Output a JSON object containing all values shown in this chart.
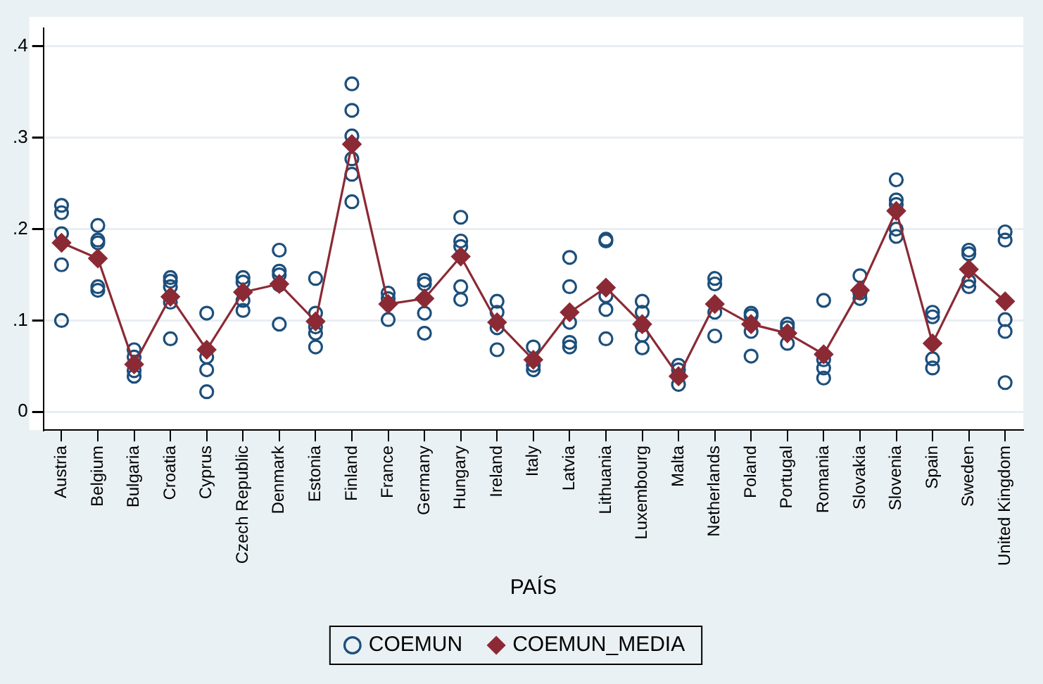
{
  "chart_data": {
    "type": "scatter",
    "xlabel": "PAÍS",
    "categories": [
      "Austria",
      "Belgium",
      "Bulgaria",
      "Croatia",
      "Cyprus",
      "Czech Republic",
      "Denmark",
      "Estonia",
      "Finland",
      "France",
      "Germany",
      "Hungary",
      "Ireland",
      "Italy",
      "Latvia",
      "Lithuania",
      "Luxembourg",
      "Malta",
      "Netherlands",
      "Poland",
      "Portugal",
      "Romania",
      "Slovakia",
      "Slovenia",
      "Spain",
      "Sweden",
      "United Kingdom"
    ],
    "ylim": [
      -0.02,
      0.42
    ],
    "yticks": [
      {
        "value": 0,
        "label": "0"
      },
      {
        "value": 0.1,
        "label": ".1"
      },
      {
        "value": 0.2,
        "label": ".2"
      },
      {
        "value": 0.3,
        "label": ".3"
      },
      {
        "value": 0.4,
        "label": ".4"
      }
    ],
    "grid": "y",
    "legend": "bottom",
    "series": [
      {
        "name": "COEMUN",
        "type": "scatter",
        "marker": "circle",
        "color": "#1c4f7c",
        "x": [
          "Austria",
          "Austria",
          "Austria",
          "Austria",
          "Austria",
          "Belgium",
          "Belgium",
          "Belgium",
          "Belgium",
          "Belgium",
          "Bulgaria",
          "Bulgaria",
          "Bulgaria",
          "Bulgaria",
          "Croatia",
          "Croatia",
          "Croatia",
          "Croatia",
          "Croatia",
          "Cyprus",
          "Cyprus",
          "Cyprus",
          "Cyprus",
          "Czech Republic",
          "Czech Republic",
          "Czech Republic",
          "Czech Republic",
          "Denmark",
          "Denmark",
          "Denmark",
          "Denmark",
          "Denmark",
          "Estonia",
          "Estonia",
          "Estonia",
          "Estonia",
          "Estonia",
          "Finland",
          "Finland",
          "Finland",
          "Finland",
          "Finland",
          "Finland",
          "France",
          "France",
          "France",
          "Germany",
          "Germany",
          "Germany",
          "Germany",
          "Hungary",
          "Hungary",
          "Hungary",
          "Hungary",
          "Hungary",
          "Ireland",
          "Ireland",
          "Ireland",
          "Ireland",
          "Italy",
          "Italy",
          "Italy",
          "Latvia",
          "Latvia",
          "Latvia",
          "Latvia",
          "Latvia",
          "Lithuania",
          "Lithuania",
          "Lithuania",
          "Lithuania",
          "Lithuania",
          "Luxembourg",
          "Luxembourg",
          "Luxembourg",
          "Luxembourg",
          "Luxembourg",
          "Malta",
          "Malta",
          "Malta",
          "Netherlands",
          "Netherlands",
          "Netherlands",
          "Netherlands",
          "Poland",
          "Poland",
          "Poland",
          "Poland",
          "Portugal",
          "Portugal",
          "Portugal",
          "Romania",
          "Romania",
          "Romania",
          "Romania",
          "Slovakia",
          "Slovakia",
          "Slovakia",
          "Slovenia",
          "Slovenia",
          "Slovenia",
          "Slovenia",
          "Slovenia",
          "Spain",
          "Spain",
          "Spain",
          "Spain",
          "Sweden",
          "Sweden",
          "Sweden",
          "Sweden",
          "United Kingdom",
          "United Kingdom",
          "United Kingdom",
          "United Kingdom",
          "United Kingdom"
        ],
        "values": [
          0.226,
          0.218,
          0.195,
          0.161,
          0.1,
          0.204,
          0.188,
          0.185,
          0.137,
          0.133,
          0.068,
          0.06,
          0.045,
          0.039,
          0.147,
          0.143,
          0.137,
          0.12,
          0.08,
          0.108,
          0.06,
          0.046,
          0.022,
          0.147,
          0.142,
          0.122,
          0.111,
          0.177,
          0.154,
          0.15,
          0.139,
          0.096,
          0.146,
          0.108,
          0.093,
          0.086,
          0.071,
          0.359,
          0.33,
          0.302,
          0.277,
          0.26,
          0.23,
          0.13,
          0.124,
          0.101,
          0.144,
          0.14,
          0.108,
          0.086,
          0.213,
          0.187,
          0.181,
          0.137,
          0.123,
          0.121,
          0.109,
          0.092,
          0.068,
          0.071,
          0.051,
          0.046,
          0.169,
          0.137,
          0.098,
          0.076,
          0.071,
          0.189,
          0.187,
          0.127,
          0.112,
          0.08,
          0.121,
          0.109,
          0.095,
          0.084,
          0.07,
          0.051,
          0.046,
          0.03,
          0.146,
          0.14,
          0.109,
          0.083,
          0.108,
          0.105,
          0.088,
          0.061,
          0.096,
          0.092,
          0.075,
          0.122,
          0.057,
          0.048,
          0.037,
          0.149,
          0.13,
          0.124,
          0.254,
          0.232,
          0.227,
          0.2,
          0.192,
          0.109,
          0.104,
          0.058,
          0.048,
          0.177,
          0.173,
          0.143,
          0.137,
          0.197,
          0.188,
          0.101,
          0.088,
          0.032
        ]
      },
      {
        "name": "COEMUN_MEDIA",
        "type": "line",
        "marker": "diamond",
        "line_style": "solid",
        "color": "#8b2a35",
        "values": [
          0.185,
          0.168,
          0.052,
          0.126,
          0.068,
          0.131,
          0.14,
          0.099,
          0.293,
          0.118,
          0.124,
          0.17,
          0.098,
          0.057,
          0.109,
          0.136,
          0.096,
          0.039,
          0.118,
          0.096,
          0.086,
          0.063,
          0.133,
          0.22,
          0.075,
          0.156,
          0.121
        ]
      }
    ]
  }
}
